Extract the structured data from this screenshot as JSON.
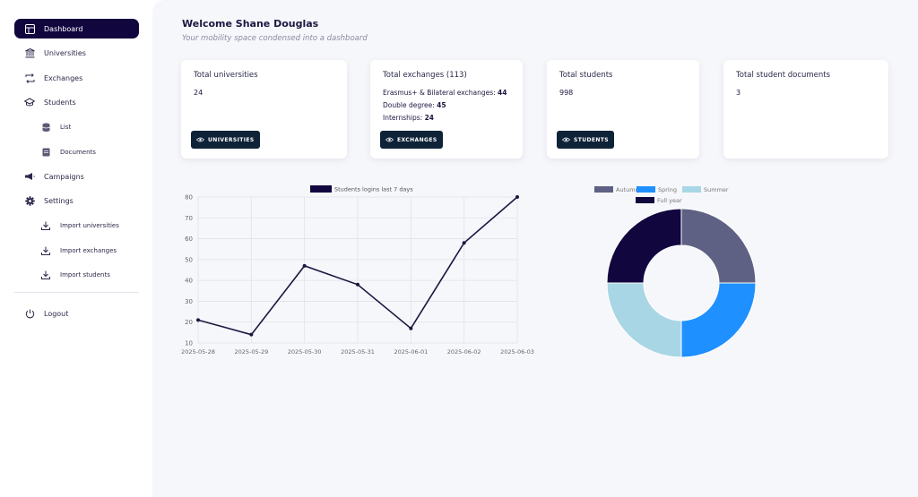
{
  "sidebar": {
    "items": [
      {
        "label": "Dashboard",
        "icon": "dashboard-icon"
      },
      {
        "label": "Universities",
        "icon": "university-icon"
      },
      {
        "label": "Exchanges",
        "icon": "exchange-icon"
      },
      {
        "label": "Students",
        "icon": "graduation-cap-icon"
      },
      {
        "label": "List",
        "icon": "database-icon"
      },
      {
        "label": "Documents",
        "icon": "document-icon"
      },
      {
        "label": "Campaigns",
        "icon": "megaphone-icon"
      },
      {
        "label": "Settings",
        "icon": "gear-icon"
      },
      {
        "label": "Import universities",
        "icon": "download-icon"
      },
      {
        "label": "Import exchanges",
        "icon": "download-icon"
      },
      {
        "label": "Import students",
        "icon": "download-icon"
      }
    ],
    "logout_label": "Logout"
  },
  "header": {
    "welcome": "Welcome Shane Douglas",
    "subtitle": "Your mobility space condensed into a dashboard"
  },
  "cards": {
    "universities": {
      "title": "Total universities",
      "value": "24",
      "button": "UNIVERSITIES"
    },
    "exchanges": {
      "title": "Total exchanges (113)",
      "lines": [
        {
          "label": "Erasmus+ & Bilateral exchanges:",
          "value": "44"
        },
        {
          "label": "Double degree:",
          "value": "45"
        },
        {
          "label": "Internships:",
          "value": "24"
        }
      ],
      "button": "EXCHANGES"
    },
    "students": {
      "title": "Total students",
      "value": "998",
      "button": "STUDENTS"
    },
    "documents": {
      "title": "Total student documents",
      "value": "3"
    }
  },
  "colors": {
    "accent": "#12063f",
    "button": "#0e2238",
    "autumn": "#5f6184",
    "spring": "#1e90ff",
    "summer": "#a9d6e5",
    "full_year": "#12063f"
  },
  "chart_data": [
    {
      "type": "line",
      "series": [
        {
          "name": "Students logins last 7 days",
          "values": [
            21,
            14,
            47,
            38,
            17,
            58,
            80
          ]
        }
      ],
      "x": [
        "2025-05-28",
        "2025-05-29",
        "2025-05-30",
        "2025-05-31",
        "2025-06-01",
        "2025-06-02",
        "2025-06-03"
      ],
      "yticks": [
        10,
        20,
        30,
        40,
        50,
        60,
        70,
        80
      ],
      "ylim": [
        10,
        80
      ],
      "grid": true,
      "legend": "top"
    },
    {
      "type": "pie",
      "donut": true,
      "categories": [
        "Autumn",
        "Spring",
        "Summer",
        "Full year"
      ],
      "values": [
        25,
        25,
        25,
        25
      ],
      "legend": "top"
    }
  ]
}
